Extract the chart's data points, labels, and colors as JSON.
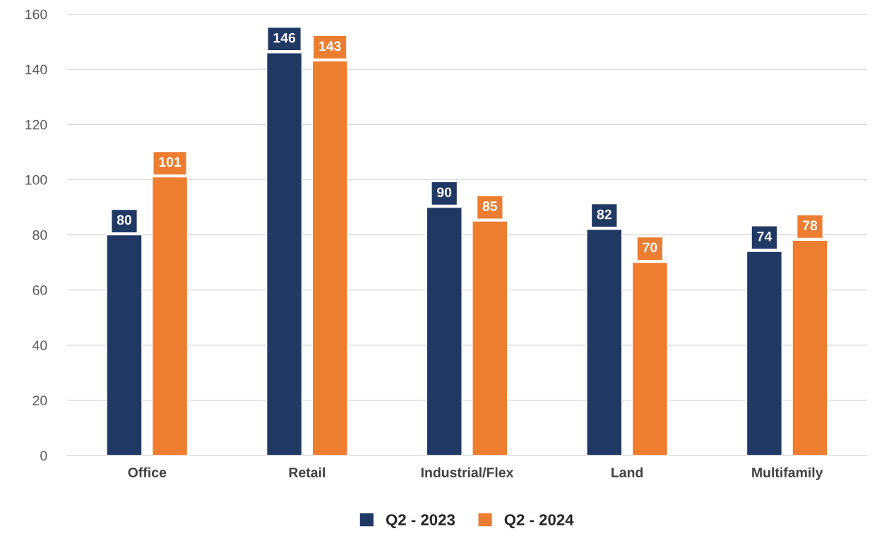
{
  "chart_data": {
    "type": "bar",
    "categories": [
      "Office",
      "Retail",
      "Industrial/Flex",
      "Land",
      "Multifamily"
    ],
    "series": [
      {
        "name": "Q2 - 2023",
        "color": "#1f3864",
        "values": [
          80,
          146,
          90,
          82,
          74
        ]
      },
      {
        "name": "Q2 - 2024",
        "color": "#ed7d31",
        "values": [
          101,
          143,
          85,
          70,
          78
        ]
      }
    ],
    "ylim": [
      0,
      160
    ],
    "yticks": [
      0,
      20,
      40,
      60,
      80,
      100,
      120,
      140,
      160
    ],
    "grid": "y",
    "legend": "bottom",
    "data_labels": true
  }
}
